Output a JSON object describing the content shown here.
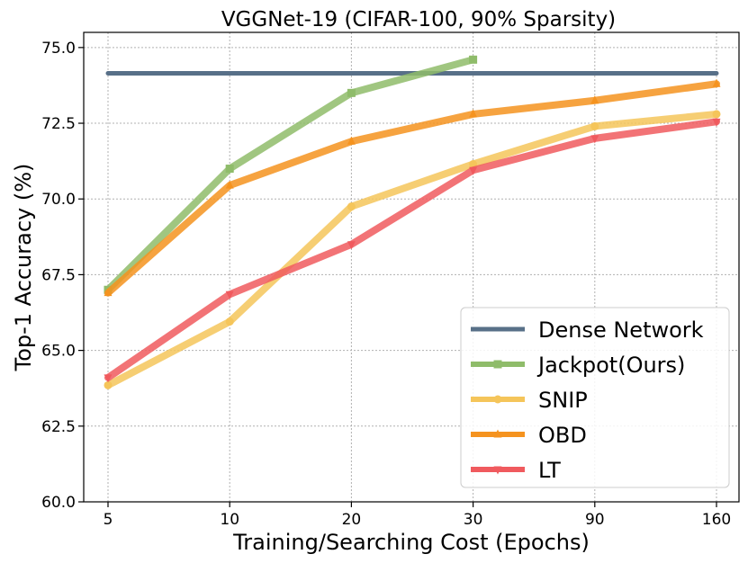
{
  "chart_data": {
    "type": "line",
    "title": "VGGNet-19 (CIFAR-100, 90% Sparsity)",
    "xlabel": "Training/Searching Cost (Epochs)",
    "ylabel": "Top-1 Accuracy (%)",
    "categories": [
      "5",
      "10",
      "20",
      "30",
      "90",
      "160"
    ],
    "ylim": [
      60.0,
      75.5
    ],
    "yticks": [
      "60.0",
      "62.5",
      "65.0",
      "67.5",
      "70.0",
      "72.5",
      "75.0"
    ],
    "grid": true,
    "legend_position": "bottom-right",
    "series": [
      {
        "name": "Dense Network",
        "color": "#587088",
        "marker": "none",
        "values": [
          74.15,
          74.15,
          74.15,
          74.15,
          74.15,
          74.15
        ]
      },
      {
        "name": "Jackpot(Ours)",
        "color": "#8fbc6a",
        "marker": "square",
        "values": [
          67.0,
          71.0,
          73.5,
          74.6,
          null,
          null
        ]
      },
      {
        "name": "SNIP",
        "color": "#f5c55a",
        "marker": "circle",
        "values": [
          63.85,
          65.95,
          69.75,
          71.15,
          72.4,
          72.8
        ]
      },
      {
        "name": "OBD",
        "color": "#f5931f",
        "marker": "triangle-up",
        "values": [
          66.9,
          70.45,
          71.9,
          72.8,
          73.25,
          73.8
        ]
      },
      {
        "name": "LT",
        "color": "#f05a5e",
        "marker": "triangle-down",
        "values": [
          64.1,
          66.85,
          68.5,
          70.95,
          72.0,
          72.55
        ]
      }
    ]
  }
}
